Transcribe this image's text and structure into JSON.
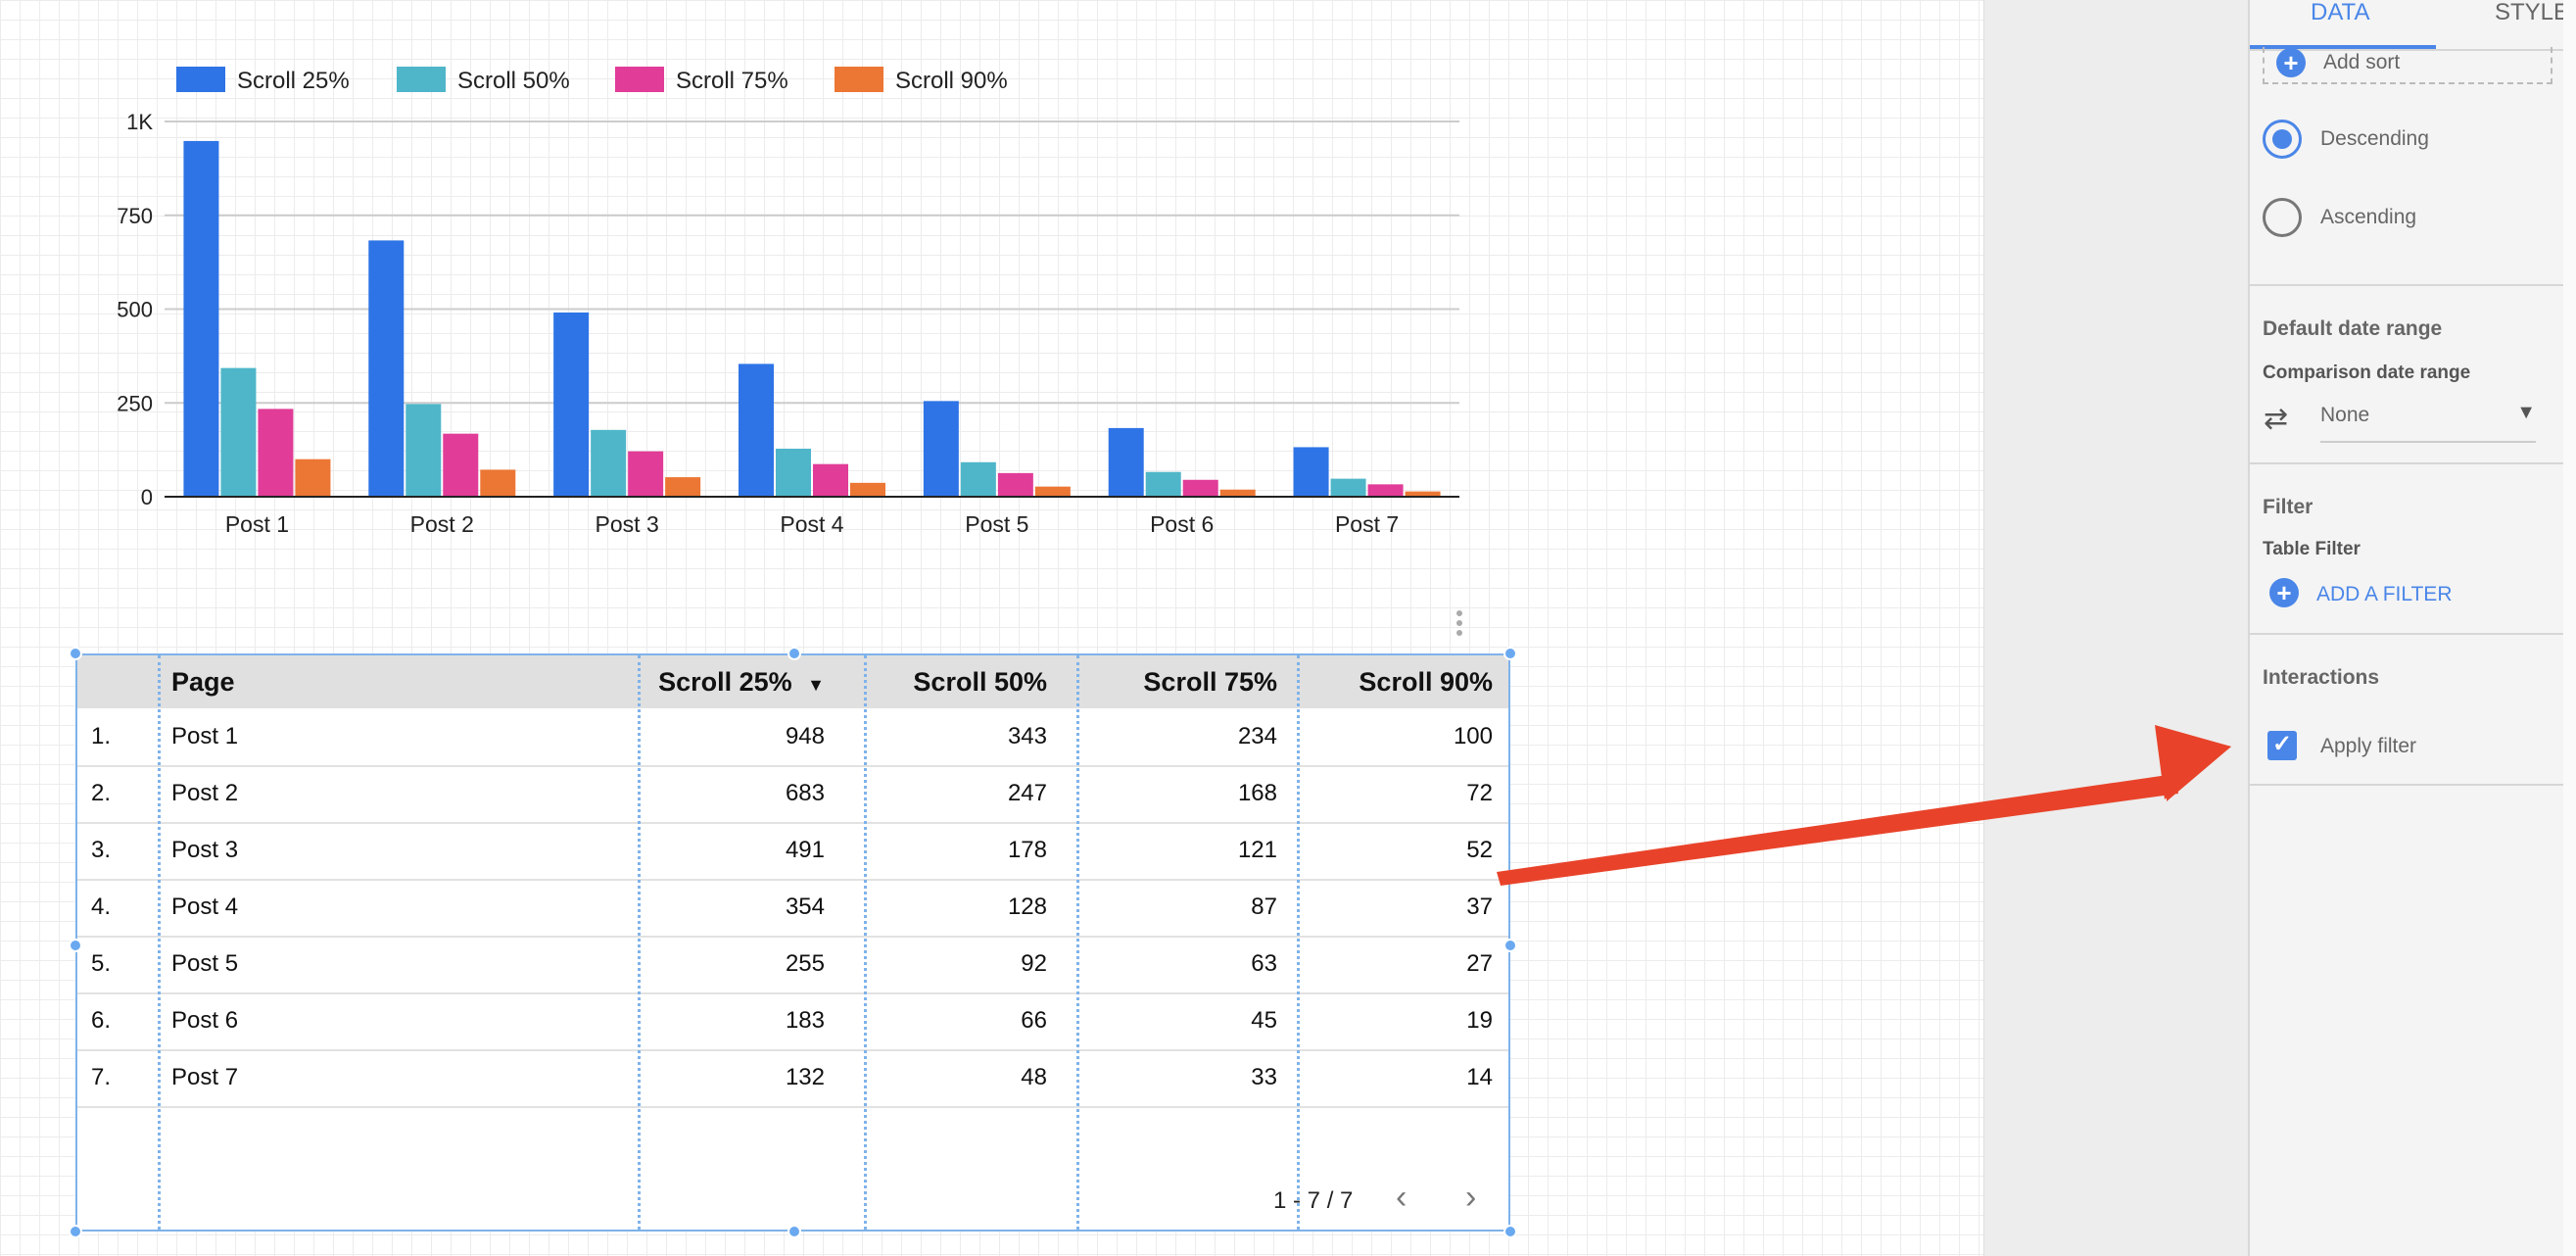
{
  "chart_data": {
    "type": "bar",
    "categories": [
      "Post 1",
      "Post 2",
      "Post 3",
      "Post 4",
      "Post 5",
      "Post 6",
      "Post 7"
    ],
    "series": [
      {
        "name": "Scroll 25%",
        "color": "#2e74e6",
        "values": [
          948,
          683,
          491,
          354,
          255,
          183,
          132
        ]
      },
      {
        "name": "Scroll 50%",
        "color": "#4fb6c9",
        "values": [
          343,
          247,
          178,
          128,
          92,
          66,
          48
        ]
      },
      {
        "name": "Scroll 75%",
        "color": "#e13c98",
        "values": [
          234,
          168,
          121,
          87,
          63,
          45,
          33
        ]
      },
      {
        "name": "Scroll 90%",
        "color": "#ec7634",
        "values": [
          100,
          72,
          52,
          37,
          27,
          19,
          14
        ]
      }
    ],
    "ylim": [
      0,
      1000
    ],
    "yticks": [
      0,
      250,
      500,
      750,
      1000
    ],
    "ytick_labels": [
      "0",
      "250",
      "500",
      "750",
      "1K"
    ],
    "legend": "top-left",
    "grid": true
  },
  "table": {
    "columns": [
      "Page",
      "Scroll 25%",
      "Scroll 50%",
      "Scroll 75%",
      "Scroll 90%"
    ],
    "sort_indicator": "▼",
    "rows": [
      {
        "idx": "1.",
        "page": "Post 1",
        "s25": "948",
        "s50": "343",
        "s75": "234",
        "s90": "100"
      },
      {
        "idx": "2.",
        "page": "Post 2",
        "s25": "683",
        "s50": "247",
        "s75": "168",
        "s90": "72"
      },
      {
        "idx": "3.",
        "page": "Post 3",
        "s25": "491",
        "s50": "178",
        "s75": "121",
        "s90": "52"
      },
      {
        "idx": "4.",
        "page": "Post 4",
        "s25": "354",
        "s50": "128",
        "s75": "87",
        "s90": "37"
      },
      {
        "idx": "5.",
        "page": "Post 5",
        "s25": "255",
        "s50": "92",
        "s75": "63",
        "s90": "27"
      },
      {
        "idx": "6.",
        "page": "Post 6",
        "s25": "183",
        "s50": "66",
        "s75": "45",
        "s90": "19"
      },
      {
        "idx": "7.",
        "page": "Post 7",
        "s25": "132",
        "s50": "48",
        "s75": "33",
        "s90": "14"
      }
    ],
    "pager": "1 - 7 / 7",
    "prev_icon": "chevron-left-icon",
    "next_icon": "chevron-right-icon"
  },
  "panel": {
    "tabs": {
      "data": "DATA",
      "style": "STYLE"
    },
    "add_sort": "Add sort",
    "descending": "Descending",
    "ascending": "Ascending",
    "default_date_range": "Default date range",
    "comparison_date_range": "Comparison date range",
    "comparison_value": "None",
    "filter_title": "Filter",
    "table_filter": "Table Filter",
    "add_filter": "ADD A FILTER",
    "interactions": "Interactions",
    "apply_filter": "Apply filter"
  },
  "colors": {
    "accent": "#4a86e8",
    "arrow": "#e8432a",
    "selection": "#7fb3ea"
  }
}
